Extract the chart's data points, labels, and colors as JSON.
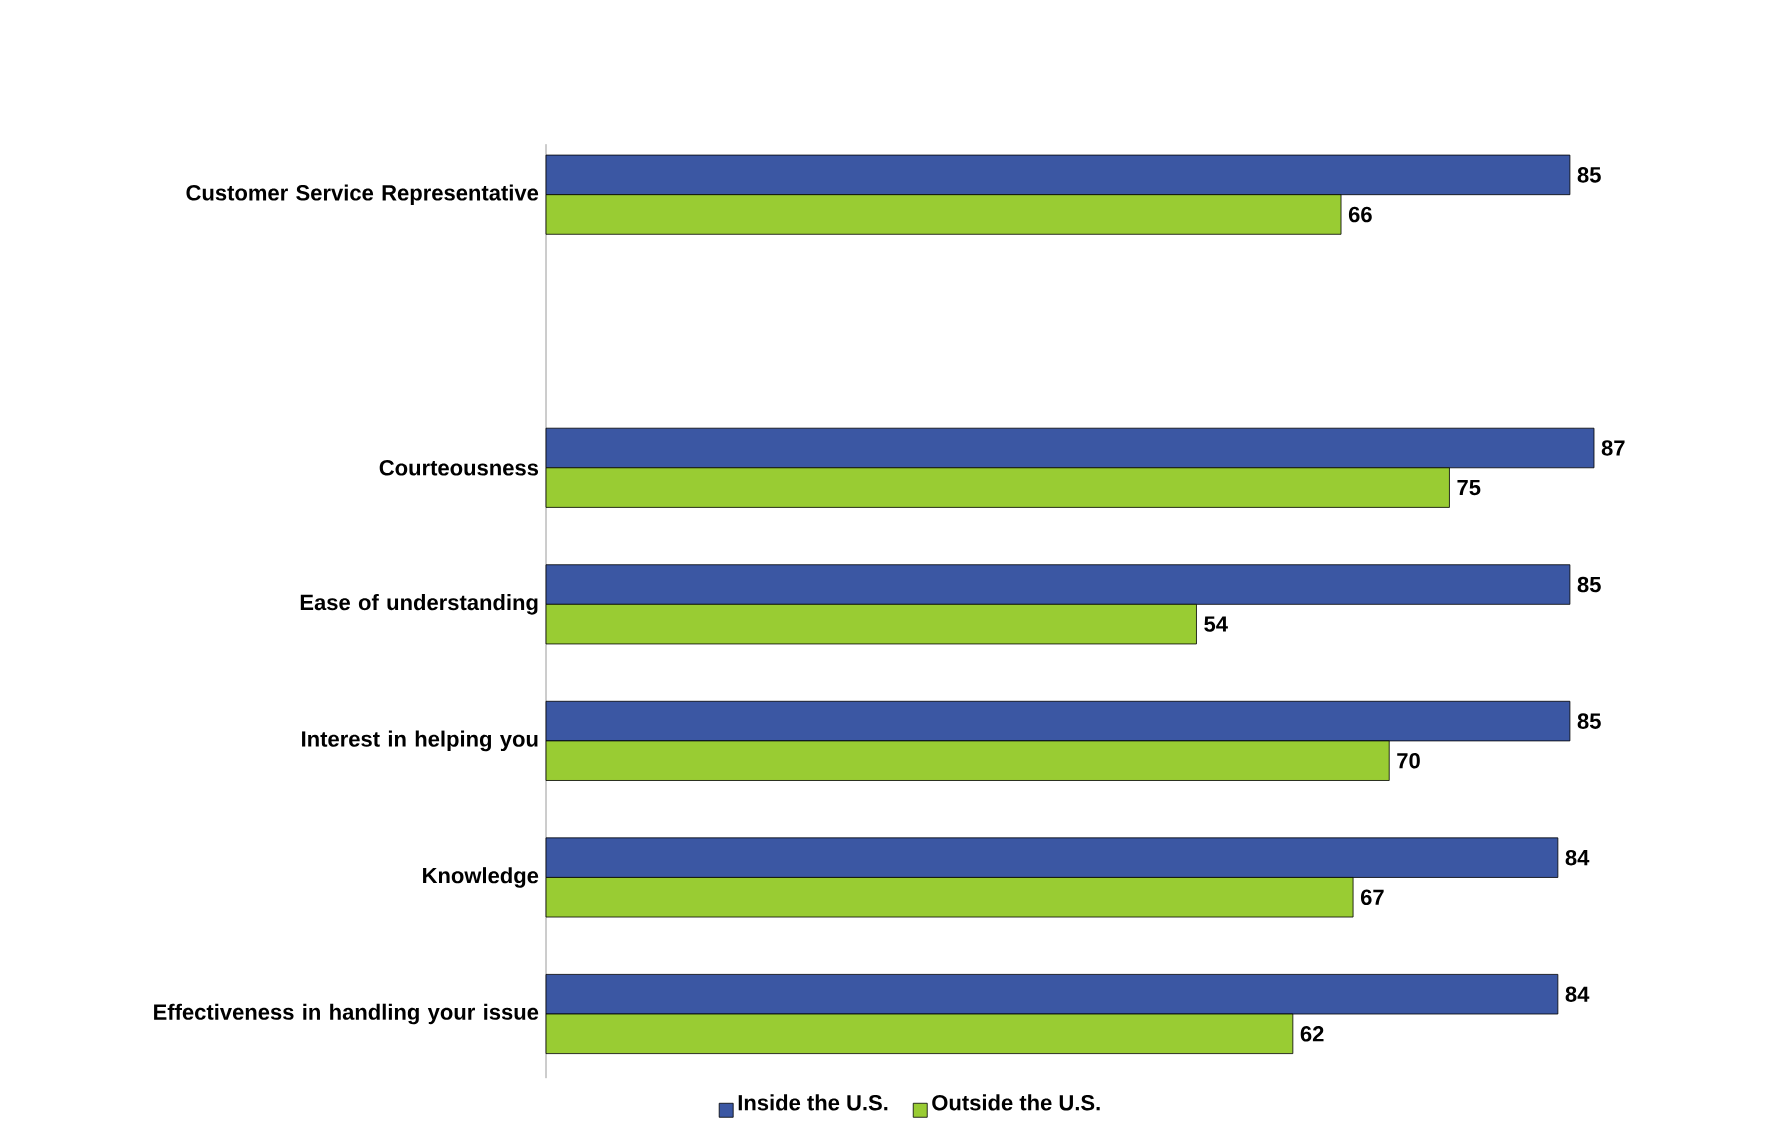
{
  "chart_data": {
    "type": "bar",
    "orientation": "horizontal",
    "categories": [
      "Customer Service Representative",
      null,
      "Courteousness",
      "Ease of understanding",
      "Interest in helping you",
      "Knowledge",
      "Effectiveness in handling your issue"
    ],
    "series": [
      {
        "name": "Inside the U.S.",
        "color": "#3b57a3",
        "values": [
          85,
          null,
          87,
          85,
          85,
          84,
          84
        ]
      },
      {
        "name": "Outside the U.S.",
        "color": "#99cc33",
        "values": [
          66,
          null,
          75,
          54,
          70,
          67,
          62
        ]
      }
    ],
    "data_labels": true,
    "legend": "bottom"
  }
}
